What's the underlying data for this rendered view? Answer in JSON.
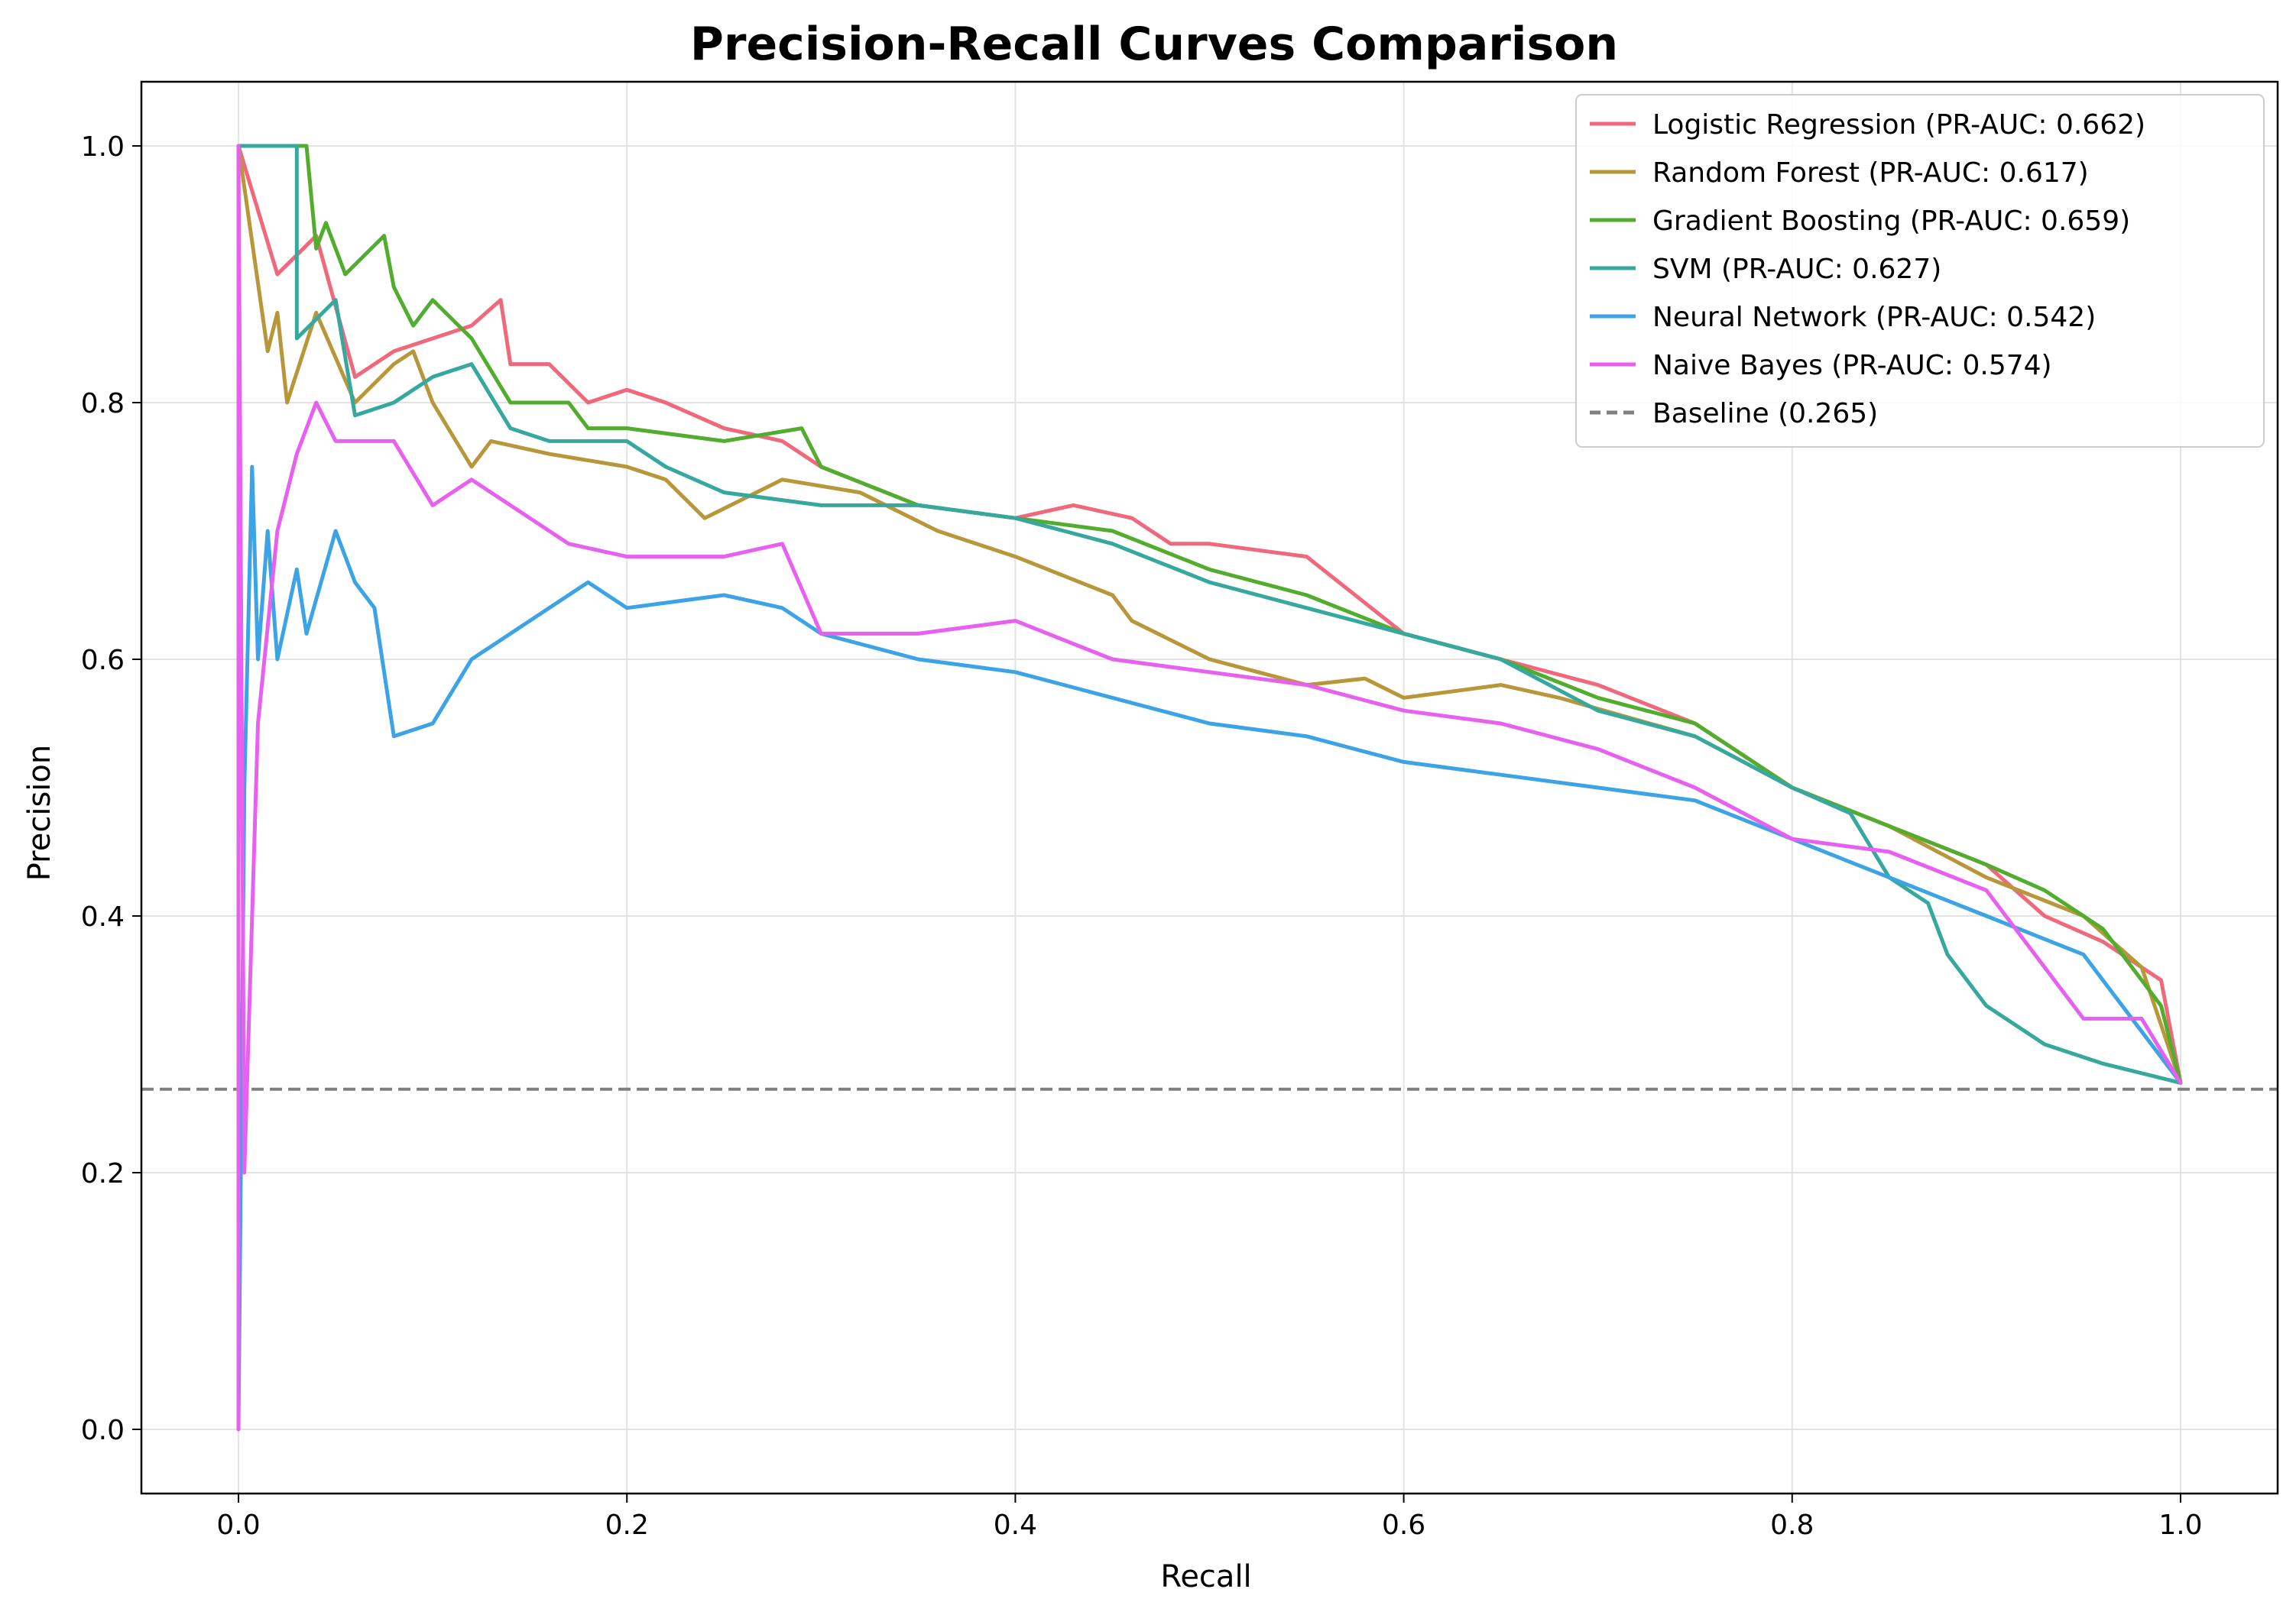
{
  "chart_data": {
    "type": "line",
    "title": "Precision-Recall Curves Comparison",
    "xlabel": "Recall",
    "ylabel": "Precision",
    "xlim": [
      -0.05,
      1.05
    ],
    "ylim": [
      -0.05,
      1.05
    ],
    "x_ticks": [
      "0.0",
      "0.2",
      "0.4",
      "0.6",
      "0.8",
      "1.0"
    ],
    "y_ticks": [
      "0.0",
      "0.2",
      "0.4",
      "0.6",
      "0.8",
      "1.0"
    ],
    "grid": true,
    "legend_position": "top-right",
    "series": [
      {
        "name": "Logistic Regression (PR-AUC: 0.662)",
        "color": "#f0687c",
        "points": [
          [
            0.0,
            1.0
          ],
          [
            0.02,
            0.9
          ],
          [
            0.04,
            0.93
          ],
          [
            0.06,
            0.82
          ],
          [
            0.08,
            0.84
          ],
          [
            0.1,
            0.85
          ],
          [
            0.12,
            0.86
          ],
          [
            0.135,
            0.88
          ],
          [
            0.14,
            0.83
          ],
          [
            0.16,
            0.83
          ],
          [
            0.18,
            0.8
          ],
          [
            0.2,
            0.81
          ],
          [
            0.22,
            0.8
          ],
          [
            0.25,
            0.78
          ],
          [
            0.28,
            0.77
          ],
          [
            0.3,
            0.75
          ],
          [
            0.35,
            0.72
          ],
          [
            0.4,
            0.71
          ],
          [
            0.43,
            0.72
          ],
          [
            0.46,
            0.71
          ],
          [
            0.48,
            0.69
          ],
          [
            0.5,
            0.69
          ],
          [
            0.55,
            0.68
          ],
          [
            0.6,
            0.62
          ],
          [
            0.65,
            0.6
          ],
          [
            0.7,
            0.58
          ],
          [
            0.75,
            0.55
          ],
          [
            0.8,
            0.5
          ],
          [
            0.85,
            0.47
          ],
          [
            0.9,
            0.44
          ],
          [
            0.93,
            0.4
          ],
          [
            0.96,
            0.38
          ],
          [
            0.99,
            0.35
          ],
          [
            1.0,
            0.27
          ]
        ]
      },
      {
        "name": "Random Forest (PR-AUC: 0.617)",
        "color": "#b8973a",
        "points": [
          [
            0.0,
            1.0
          ],
          [
            0.015,
            0.84
          ],
          [
            0.02,
            0.87
          ],
          [
            0.025,
            0.8
          ],
          [
            0.04,
            0.87
          ],
          [
            0.06,
            0.8
          ],
          [
            0.08,
            0.83
          ],
          [
            0.09,
            0.84
          ],
          [
            0.1,
            0.8
          ],
          [
            0.12,
            0.75
          ],
          [
            0.13,
            0.77
          ],
          [
            0.16,
            0.76
          ],
          [
            0.2,
            0.75
          ],
          [
            0.22,
            0.74
          ],
          [
            0.24,
            0.71
          ],
          [
            0.28,
            0.74
          ],
          [
            0.32,
            0.73
          ],
          [
            0.36,
            0.7
          ],
          [
            0.4,
            0.68
          ],
          [
            0.45,
            0.65
          ],
          [
            0.46,
            0.63
          ],
          [
            0.5,
            0.6
          ],
          [
            0.55,
            0.58
          ],
          [
            0.58,
            0.585
          ],
          [
            0.6,
            0.57
          ],
          [
            0.65,
            0.58
          ],
          [
            0.68,
            0.57
          ],
          [
            0.75,
            0.54
          ],
          [
            0.8,
            0.5
          ],
          [
            0.85,
            0.47
          ],
          [
            0.9,
            0.43
          ],
          [
            0.95,
            0.4
          ],
          [
            0.98,
            0.36
          ],
          [
            1.0,
            0.27
          ]
        ]
      },
      {
        "name": "Gradient Boosting (PR-AUC: 0.659)",
        "color": "#52ad2f",
        "points": [
          [
            0.0,
            1.0
          ],
          [
            0.035,
            1.0
          ],
          [
            0.04,
            0.92
          ],
          [
            0.045,
            0.94
          ],
          [
            0.055,
            0.9
          ],
          [
            0.075,
            0.93
          ],
          [
            0.08,
            0.89
          ],
          [
            0.09,
            0.86
          ],
          [
            0.1,
            0.88
          ],
          [
            0.12,
            0.85
          ],
          [
            0.14,
            0.8
          ],
          [
            0.17,
            0.8
          ],
          [
            0.18,
            0.78
          ],
          [
            0.2,
            0.78
          ],
          [
            0.25,
            0.77
          ],
          [
            0.29,
            0.78
          ],
          [
            0.3,
            0.75
          ],
          [
            0.35,
            0.72
          ],
          [
            0.4,
            0.71
          ],
          [
            0.45,
            0.7
          ],
          [
            0.5,
            0.67
          ],
          [
            0.55,
            0.65
          ],
          [
            0.6,
            0.62
          ],
          [
            0.65,
            0.6
          ],
          [
            0.7,
            0.57
          ],
          [
            0.75,
            0.55
          ],
          [
            0.8,
            0.5
          ],
          [
            0.85,
            0.47
          ],
          [
            0.9,
            0.44
          ],
          [
            0.93,
            0.42
          ],
          [
            0.96,
            0.39
          ],
          [
            0.99,
            0.33
          ],
          [
            1.0,
            0.27
          ]
        ]
      },
      {
        "name": "SVM (PR-AUC: 0.627)",
        "color": "#36a89e",
        "points": [
          [
            0.0,
            1.0
          ],
          [
            0.03,
            1.0
          ],
          [
            0.03,
            0.85
          ],
          [
            0.05,
            0.88
          ],
          [
            0.06,
            0.79
          ],
          [
            0.08,
            0.8
          ],
          [
            0.1,
            0.82
          ],
          [
            0.12,
            0.83
          ],
          [
            0.14,
            0.78
          ],
          [
            0.16,
            0.77
          ],
          [
            0.2,
            0.77
          ],
          [
            0.22,
            0.75
          ],
          [
            0.25,
            0.73
          ],
          [
            0.3,
            0.72
          ],
          [
            0.35,
            0.72
          ],
          [
            0.4,
            0.71
          ],
          [
            0.45,
            0.69
          ],
          [
            0.5,
            0.66
          ],
          [
            0.55,
            0.64
          ],
          [
            0.6,
            0.62
          ],
          [
            0.65,
            0.6
          ],
          [
            0.7,
            0.56
          ],
          [
            0.75,
            0.54
          ],
          [
            0.8,
            0.5
          ],
          [
            0.83,
            0.48
          ],
          [
            0.85,
            0.43
          ],
          [
            0.87,
            0.41
          ],
          [
            0.88,
            0.37
          ],
          [
            0.9,
            0.33
          ],
          [
            0.93,
            0.3
          ],
          [
            0.96,
            0.285
          ],
          [
            1.0,
            0.27
          ]
        ]
      },
      {
        "name": "Neural Network (PR-AUC: 0.542)",
        "color": "#3ba3e6",
        "points": [
          [
            0.0,
            0.0
          ],
          [
            0.003,
            0.5
          ],
          [
            0.007,
            0.75
          ],
          [
            0.01,
            0.6
          ],
          [
            0.015,
            0.7
          ],
          [
            0.02,
            0.6
          ],
          [
            0.03,
            0.67
          ],
          [
            0.035,
            0.62
          ],
          [
            0.05,
            0.7
          ],
          [
            0.06,
            0.66
          ],
          [
            0.07,
            0.64
          ],
          [
            0.08,
            0.54
          ],
          [
            0.1,
            0.55
          ],
          [
            0.12,
            0.6
          ],
          [
            0.15,
            0.63
          ],
          [
            0.18,
            0.66
          ],
          [
            0.2,
            0.64
          ],
          [
            0.25,
            0.65
          ],
          [
            0.28,
            0.64
          ],
          [
            0.3,
            0.62
          ],
          [
            0.35,
            0.6
          ],
          [
            0.4,
            0.59
          ],
          [
            0.45,
            0.57
          ],
          [
            0.5,
            0.55
          ],
          [
            0.55,
            0.54
          ],
          [
            0.6,
            0.52
          ],
          [
            0.65,
            0.51
          ],
          [
            0.7,
            0.5
          ],
          [
            0.75,
            0.49
          ],
          [
            0.8,
            0.46
          ],
          [
            0.85,
            0.43
          ],
          [
            0.9,
            0.4
          ],
          [
            0.95,
            0.37
          ],
          [
            0.98,
            0.31
          ],
          [
            1.0,
            0.27
          ]
        ]
      },
      {
        "name": "Naive Bayes (PR-AUC: 0.574)",
        "color": "#e760f0",
        "points": [
          [
            0.0,
            0.0
          ],
          [
            0.0,
            1.0
          ],
          [
            0.003,
            0.2
          ],
          [
            0.01,
            0.55
          ],
          [
            0.02,
            0.7
          ],
          [
            0.03,
            0.76
          ],
          [
            0.04,
            0.8
          ],
          [
            0.05,
            0.77
          ],
          [
            0.06,
            0.77
          ],
          [
            0.08,
            0.77
          ],
          [
            0.1,
            0.72
          ],
          [
            0.12,
            0.74
          ],
          [
            0.15,
            0.71
          ],
          [
            0.17,
            0.69
          ],
          [
            0.2,
            0.68
          ],
          [
            0.25,
            0.68
          ],
          [
            0.28,
            0.69
          ],
          [
            0.3,
            0.62
          ],
          [
            0.35,
            0.62
          ],
          [
            0.4,
            0.63
          ],
          [
            0.45,
            0.6
          ],
          [
            0.5,
            0.59
          ],
          [
            0.55,
            0.58
          ],
          [
            0.6,
            0.56
          ],
          [
            0.65,
            0.55
          ],
          [
            0.7,
            0.53
          ],
          [
            0.75,
            0.5
          ],
          [
            0.8,
            0.46
          ],
          [
            0.85,
            0.45
          ],
          [
            0.9,
            0.42
          ],
          [
            0.92,
            0.38
          ],
          [
            0.95,
            0.32
          ],
          [
            0.98,
            0.32
          ],
          [
            1.0,
            0.27
          ]
        ]
      }
    ],
    "baseline": {
      "name": "Baseline (0.265)",
      "value": 0.265,
      "color": "#808080",
      "style": "dashed"
    }
  }
}
